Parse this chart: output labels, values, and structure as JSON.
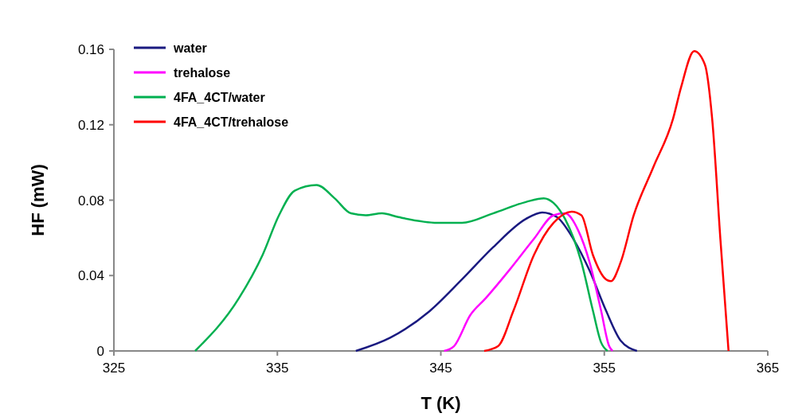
{
  "chart_data": {
    "type": "line",
    "xlabel": "T (K)",
    "ylabel": "HF (mW)",
    "xlim": [
      325,
      365
    ],
    "xticks": [
      325,
      335,
      345,
      355,
      365
    ],
    "ylim": [
      0,
      0.16
    ],
    "yticks": [
      {
        "value": 0,
        "label": "0"
      },
      0.04,
      0.08,
      0.12,
      0.16
    ],
    "grid": false,
    "legend": "top left",
    "marker": "none",
    "line_style": "solid",
    "series": [
      {
        "name": "water",
        "color": "#1a1a80",
        "x": [
          339.8,
          341.9,
          344.3,
          346.3,
          348.2,
          350.2,
          351.2,
          352.1,
          353.1,
          354.1,
          355.1,
          356.0,
          357.0
        ],
        "values": [
          0,
          0.007,
          0.021,
          0.038,
          0.055,
          0.07,
          0.0735,
          0.071,
          0.0595,
          0.0426,
          0.0215,
          0.0055,
          0
        ]
      },
      {
        "name": "trehalose",
        "color": "#ff00ff",
        "x": [
          345.2,
          345.8,
          346.8,
          347.75,
          349.2,
          350.7,
          351.9,
          352.6,
          353.4,
          354.1,
          354.8,
          355.3,
          355.5
        ],
        "values": [
          0,
          0.0025,
          0.019,
          0.028,
          0.043,
          0.0595,
          0.072,
          0.073,
          0.064,
          0.047,
          0.0215,
          0.0025,
          0
        ]
      },
      {
        "name": "4FA_4CT/water",
        "color": "#00b050",
        "x": [
          329.97,
          332.65,
          334.1,
          335.1,
          336.06,
          337.4,
          338.5,
          339.5,
          340.4,
          341.4,
          342.4,
          344.8,
          346.3,
          348.2,
          350.2,
          351.3,
          351.9,
          352.6,
          353.6,
          354.3,
          354.8,
          355.2
        ],
        "values": [
          0,
          0.028,
          0.051,
          0.072,
          0.085,
          0.088,
          0.081,
          0.073,
          0.072,
          0.073,
          0.071,
          0.068,
          0.068,
          0.073,
          0.079,
          0.081,
          0.0785,
          0.07,
          0.047,
          0.0215,
          0.0046,
          0
        ]
      },
      {
        "name": "4FA_4CT/trehalose",
        "color": "#ff0000",
        "x": [
          347.65,
          348.5,
          349.45,
          350.7,
          351.9,
          353.0,
          353.6,
          354.3,
          355.1,
          355.4,
          356.0,
          356.8,
          358.0,
          359.2,
          359.7,
          360.5,
          361.15,
          361.6,
          362.1,
          362.6
        ],
        "values": [
          0,
          0.0025,
          0.0215,
          0.051,
          0.068,
          0.0739,
          0.072,
          0.051,
          0.038,
          0.037,
          0.047,
          0.072,
          0.0975,
          0.123,
          0.14,
          0.159,
          0.152,
          0.123,
          0.0595,
          0
        ]
      }
    ]
  }
}
